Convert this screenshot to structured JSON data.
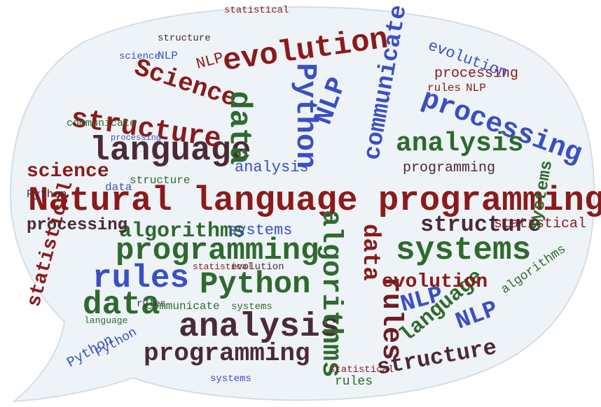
{
  "colors": {
    "bubble_fill": "#eef3f7",
    "bubble_stroke": "#d5dde4",
    "red": "#8b1a1a",
    "dark_red": "#6e1c24",
    "green": "#2e6a2e",
    "blue": "#3b4fc2",
    "plum": "#4b2a36"
  },
  "shape": "speech-bubble",
  "words": {
    "natural_language_programming": "Natural language programming",
    "language": "language",
    "structure": "structure",
    "science": "Science",
    "science_lower": "science",
    "evolution": "evolution",
    "data": "data",
    "python": "Python",
    "nlp": "NLP",
    "communicate": "communicate",
    "processing": "processing",
    "analysis": "analysis",
    "algorithms": "algorithms",
    "programming": "programming",
    "systems": "systems",
    "rules": "rules",
    "statistical": "statistical"
  }
}
